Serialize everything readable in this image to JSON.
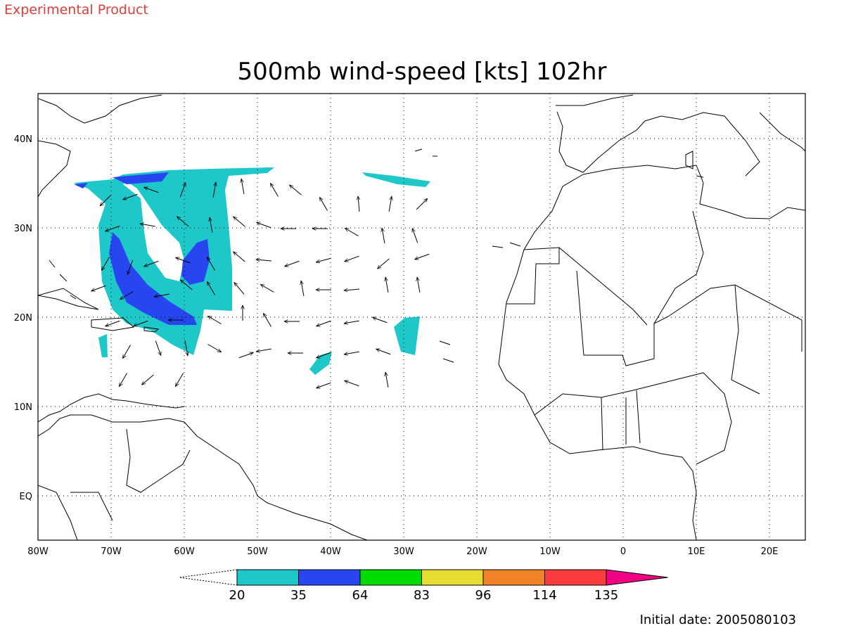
{
  "header": {
    "label": "Experimental Product",
    "title": "500mb wind-speed [kts] 102hr"
  },
  "map": {
    "lon_ticks": [
      "80W",
      "70W",
      "60W",
      "50W",
      "40W",
      "30W",
      "20W",
      "10W",
      "0",
      "10E",
      "20E"
    ],
    "lat_ticks": [
      "40N",
      "30N",
      "20N",
      "10N",
      "EQ"
    ]
  },
  "colorbar": {
    "levels": [
      20,
      35,
      64,
      83,
      96,
      114,
      135
    ],
    "colors": [
      "#1ec8c8",
      "#2846f0",
      "#00dc00",
      "#e6dc32",
      "#f08228",
      "#fa3c3c",
      "#f00082"
    ]
  },
  "footer": "Initial date: 2005080103"
}
